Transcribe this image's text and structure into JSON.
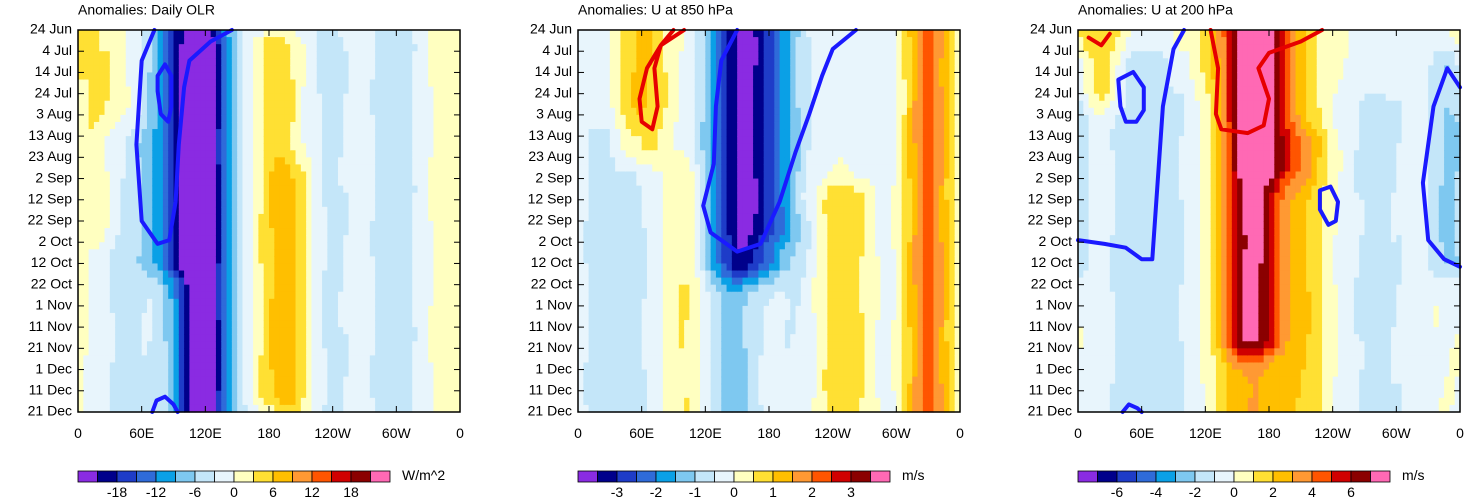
{
  "chart_data": [
    {
      "type": "heatmap",
      "title": "Anomalies: Daily OLR",
      "units": "W/m^2",
      "x_ticks": [
        "0",
        "60E",
        "120E",
        "180",
        "120W",
        "60W",
        "0"
      ],
      "y_ticks": [
        "24 Jun",
        "4 Jul",
        "14 Jul",
        "24 Jul",
        "3 Aug",
        "13 Aug",
        "23 Aug",
        "2 Sep",
        "12 Sep",
        "22 Sep",
        "2 Oct",
        "12 Oct",
        "22 Oct",
        "1 Nov",
        "11 Nov",
        "21 Nov",
        "1 Dec",
        "11 Dec",
        "21 Dec"
      ],
      "colorbar_labels": [
        "-18",
        "-12",
        "-6",
        "0",
        "6",
        "12",
        "18"
      ],
      "levels": [
        -21,
        -18,
        -15,
        -12,
        -9,
        -6,
        -3,
        0,
        3,
        6,
        9,
        12,
        15,
        18,
        21
      ],
      "xlim": [
        0,
        360
      ],
      "time_range": [
        "24 Jun",
        "21 Dec"
      ],
      "bands": [
        {
          "lon": 110,
          "value": -16,
          "width": 18,
          "t0": 0,
          "t1": 1
        },
        {
          "lon": 122,
          "value": -11,
          "width": 14,
          "t0": 0.05,
          "t1": 1
        },
        {
          "lon": 85,
          "value": -8,
          "width": 18,
          "t0": 0,
          "t1": 0.6
        },
        {
          "lon": 160,
          "value": -4,
          "width": 28,
          "t0": 0,
          "t1": 1
        },
        {
          "lon": 185,
          "value": 8,
          "width": 18,
          "t0": 0.05,
          "t1": 0.95
        },
        {
          "lon": 205,
          "value": 4,
          "width": 14,
          "t0": 0.4,
          "t1": 1
        },
        {
          "lon": 240,
          "value": -4,
          "width": 22,
          "t0": 0,
          "t1": 1
        },
        {
          "lon": 265,
          "value": 2,
          "width": 14,
          "t0": 0,
          "t1": 1
        },
        {
          "lon": 300,
          "value": -5,
          "width": 24,
          "t0": 0,
          "t1": 1
        },
        {
          "lon": 340,
          "value": 2,
          "width": 22,
          "t0": 0,
          "t1": 1
        },
        {
          "lon": 20,
          "value": 3,
          "width": 18,
          "t0": 0,
          "t1": 0.5
        },
        {
          "lon": 45,
          "value": -4,
          "width": 20,
          "t0": 0.3,
          "t1": 1
        }
      ],
      "contours": [
        {
          "color": "#1a1aff",
          "closed": false,
          "points": [
            [
              72,
              0
            ],
            [
              60,
              0.08
            ],
            [
              55,
              0.3
            ],
            [
              60,
              0.5
            ],
            [
              75,
              0.56
            ],
            [
              86,
              0.55
            ],
            [
              92,
              0.45
            ],
            [
              95,
              0.3
            ],
            [
              100,
              0.15
            ],
            [
              105,
              0.08
            ],
            [
              125,
              0.03
            ],
            [
              145,
              0
            ]
          ]
        },
        {
          "color": "#1a1aff",
          "closed": true,
          "points": [
            [
              75,
              0.12
            ],
            [
              82,
              0.09
            ],
            [
              88,
              0.12
            ],
            [
              88,
              0.2
            ],
            [
              85,
              0.24
            ],
            [
              78,
              0.22
            ],
            [
              75,
              0.16
            ]
          ]
        },
        {
          "color": "#1a1aff",
          "closed": false,
          "points": [
            [
              70,
              1
            ],
            [
              74,
              0.97
            ],
            [
              82,
              0.96
            ],
            [
              90,
              0.98
            ],
            [
              94,
              1
            ]
          ]
        }
      ]
    },
    {
      "type": "heatmap",
      "title": "Anomalies: U at 850 hPa",
      "units": "m/s",
      "x_ticks": [
        "0",
        "60E",
        "120E",
        "180",
        "120W",
        "60W",
        "0"
      ],
      "y_ticks": [
        "24 Jun",
        "4 Jul",
        "14 Jul",
        "24 Jul",
        "3 Aug",
        "13 Aug",
        "23 Aug",
        "2 Sep",
        "12 Sep",
        "22 Sep",
        "2 Oct",
        "12 Oct",
        "22 Oct",
        "1 Nov",
        "11 Nov",
        "21 Nov",
        "1 Dec",
        "11 Dec",
        "21 Dec"
      ],
      "colorbar_labels": [
        "-3",
        "-2",
        "-1",
        "0",
        "1",
        "2",
        "3"
      ],
      "levels": [
        -3.5,
        -3,
        -2.5,
        -2,
        -1.5,
        -1,
        -0.5,
        0,
        0.5,
        1,
        1.5,
        2,
        2.5,
        3,
        3.5
      ],
      "xlim": [
        0,
        360
      ],
      "time_range": [
        "24 Jun",
        "21 Dec"
      ],
      "bands": [
        {
          "lon": 160,
          "value": -2.4,
          "width": 24,
          "t0": 0,
          "t1": 0.6
        },
        {
          "lon": 145,
          "value": -1.2,
          "width": 20,
          "t0": 0,
          "t1": 1
        },
        {
          "lon": 190,
          "value": -0.9,
          "width": 22,
          "t0": 0,
          "t1": 0.5
        },
        {
          "lon": 60,
          "value": 1.1,
          "width": 18,
          "t0": 0,
          "t1": 0.3
        },
        {
          "lon": 50,
          "value": -0.6,
          "width": 26,
          "t0": 0.3,
          "t1": 1
        },
        {
          "lon": 250,
          "value": 1.0,
          "width": 22,
          "t0": 0.45,
          "t1": 1
        },
        {
          "lon": 330,
          "value": 2.2,
          "width": 16,
          "t0": 0,
          "t1": 1
        },
        {
          "lon": 210,
          "value": -0.6,
          "width": 18,
          "t0": 0.55,
          "t1": 1
        },
        {
          "lon": 290,
          "value": -0.4,
          "width": 20,
          "t0": 0,
          "t1": 1
        },
        {
          "lon": 100,
          "value": 0.7,
          "width": 16,
          "t0": 0.4,
          "t1": 1
        },
        {
          "lon": 15,
          "value": -0.5,
          "width": 16,
          "t0": 0,
          "t1": 1
        }
      ],
      "contours": [
        {
          "color": "#e60000",
          "closed": false,
          "points": [
            [
              90,
              0
            ],
            [
              78,
              0.04
            ],
            [
              65,
              0.1
            ],
            [
              58,
              0.18
            ],
            [
              60,
              0.24
            ],
            [
              70,
              0.26
            ],
            [
              75,
              0.2
            ],
            [
              72,
              0.1
            ],
            [
              78,
              0.04
            ],
            [
              100,
              0
            ]
          ]
        },
        {
          "color": "#1a1aff",
          "closed": false,
          "points": [
            [
              150,
              0
            ],
            [
              135,
              0.08
            ],
            [
              130,
              0.2
            ],
            [
              128,
              0.35
            ],
            [
              118,
              0.46
            ],
            [
              125,
              0.53
            ],
            [
              150,
              0.58
            ],
            [
              172,
              0.56
            ],
            [
              190,
              0.45
            ],
            [
              205,
              0.32
            ],
            [
              218,
              0.22
            ],
            [
              230,
              0.12
            ],
            [
              240,
              0.05
            ],
            [
              262,
              0
            ]
          ]
        }
      ]
    },
    {
      "type": "heatmap",
      "title": "Anomalies: U at 200 hPa",
      "units": "m/s",
      "x_ticks": [
        "0",
        "60E",
        "120E",
        "180",
        "120W",
        "60W",
        "0"
      ],
      "y_ticks": [
        "24 Jun",
        "4 Jul",
        "14 Jul",
        "24 Jul",
        "3 Aug",
        "13 Aug",
        "23 Aug",
        "2 Sep",
        "12 Sep",
        "22 Sep",
        "2 Oct",
        "12 Oct",
        "22 Oct",
        "1 Nov",
        "11 Nov",
        "21 Nov",
        "1 Dec",
        "11 Dec",
        "21 Dec"
      ],
      "colorbar_labels": [
        "-6",
        "-4",
        "-2",
        "0",
        "2",
        "4",
        "6"
      ],
      "levels": [
        -7,
        -6,
        -5,
        -4,
        -3,
        -2,
        -1,
        0,
        1,
        2,
        3,
        4,
        5,
        6,
        7
      ],
      "xlim": [
        0,
        360
      ],
      "time_range": [
        "24 Jun",
        "21 Dec"
      ],
      "bands": [
        {
          "lon": 165,
          "value": 4.5,
          "width": 20,
          "t0": 0,
          "t1": 0.8
        },
        {
          "lon": 160,
          "value": 3.0,
          "width": 26,
          "t0": 0,
          "t1": 1
        },
        {
          "lon": 190,
          "value": 2.2,
          "width": 26,
          "t0": 0,
          "t1": 0.35
        },
        {
          "lon": 20,
          "value": 2.0,
          "width": 16,
          "t0": 0,
          "t1": 0.15
        },
        {
          "lon": 60,
          "value": -1.8,
          "width": 24,
          "t0": 0.1,
          "t1": 1
        },
        {
          "lon": 110,
          "value": -0.8,
          "width": 22,
          "t0": 0.2,
          "t1": 1
        },
        {
          "lon": 215,
          "value": 1.6,
          "width": 18,
          "t0": 0.3,
          "t1": 1
        },
        {
          "lon": 270,
          "value": -1.0,
          "width": 22,
          "t0": 0.2,
          "t1": 1
        },
        {
          "lon": 350,
          "value": -2.2,
          "width": 14,
          "t0": 0.1,
          "t1": 0.6
        },
        {
          "lon": 300,
          "value": -0.6,
          "width": 18,
          "t0": 0,
          "t1": 1
        }
      ],
      "contours": [
        {
          "color": "#e60000",
          "closed": false,
          "points": [
            [
              125,
              0
            ],
            [
              132,
              0.1
            ],
            [
              130,
              0.22
            ],
            [
              135,
              0.26
            ],
            [
              160,
              0.27
            ],
            [
              175,
              0.25
            ],
            [
              180,
              0.18
            ],
            [
              170,
              0.1
            ],
            [
              180,
              0.06
            ],
            [
              210,
              0.03
            ],
            [
              230,
              0
            ]
          ]
        },
        {
          "color": "#e60000",
          "closed": false,
          "points": [
            [
              10,
              0.02
            ],
            [
              22,
              0.04
            ],
            [
              30,
              0.01
            ]
          ]
        },
        {
          "color": "#1a1aff",
          "closed": false,
          "points": [
            [
              0,
              0.55
            ],
            [
              25,
              0.56
            ],
            [
              45,
              0.57
            ],
            [
              60,
              0.6
            ],
            [
              70,
              0.6
            ],
            [
              75,
              0.4
            ],
            [
              80,
              0.2
            ],
            [
              90,
              0.05
            ],
            [
              100,
              0
            ]
          ]
        },
        {
          "color": "#1a1aff",
          "closed": true,
          "points": [
            [
              38,
              0.13
            ],
            [
              52,
              0.11
            ],
            [
              62,
              0.15
            ],
            [
              62,
              0.21
            ],
            [
              55,
              0.24
            ],
            [
              45,
              0.24
            ],
            [
              40,
              0.2
            ]
          ]
        },
        {
          "color": "#1a1aff",
          "closed": true,
          "points": [
            [
              228,
              0.42
            ],
            [
              238,
              0.41
            ],
            [
              245,
              0.45
            ],
            [
              243,
              0.5
            ],
            [
              236,
              0.51
            ],
            [
              228,
              0.47
            ]
          ]
        },
        {
          "color": "#1a1aff",
          "closed": false,
          "points": [
            [
              360,
              0.15
            ],
            [
              348,
              0.1
            ],
            [
              335,
              0.2
            ],
            [
              325,
              0.4
            ],
            [
              330,
              0.55
            ],
            [
              345,
              0.6
            ],
            [
              360,
              0.62
            ]
          ]
        },
        {
          "color": "#1a1aff",
          "closed": false,
          "points": [
            [
              42,
              1
            ],
            [
              48,
              0.98
            ],
            [
              56,
              0.99
            ],
            [
              60,
              1
            ]
          ]
        }
      ]
    }
  ],
  "colors": {
    "negative": [
      "#8a2be2",
      "#00008b",
      "#1e3cc8",
      "#2f6bd9",
      "#0aa0e6",
      "#7ec8f0",
      "#c4e6f9"
    ],
    "neutral": "#ffffff",
    "positive": [
      "#ffffc0",
      "#ffe033",
      "#ffbf00",
      "#ff9933",
      "#ff5500",
      "#d00000",
      "#8b0000"
    ],
    "extreme": "#ff69b4"
  }
}
